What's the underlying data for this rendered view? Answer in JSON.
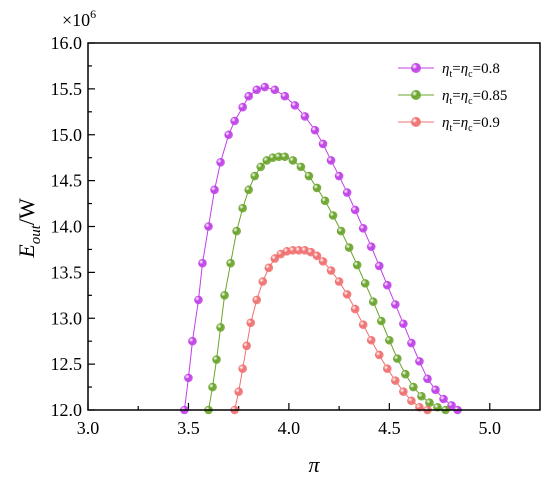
{
  "chart_data": {
    "type": "line",
    "title": "",
    "xlabel": "π",
    "ylabel": {
      "base": "E",
      "sub": "out",
      "suffix": "/W"
    },
    "y_multiplier": {
      "base": "×10",
      "exp": "6"
    },
    "xlim": [
      3.0,
      5.25
    ],
    "ylim": [
      12.0,
      16.0
    ],
    "xticks": [
      "3.0",
      "3.5",
      "4.0",
      "4.5",
      "5.0"
    ],
    "yticks": [
      "12.0",
      "12.5",
      "13.0",
      "13.5",
      "14.0",
      "14.5",
      "15.0",
      "15.5",
      "16.0"
    ],
    "legend_position": "top-right",
    "series": [
      {
        "name": "η_t=η_c=0.8",
        "label": {
          "eta": "η",
          "sub1": "t",
          "eq1": "=",
          "sub2": "c",
          "eq2": "=0.8"
        },
        "color": "#c040e8",
        "peak_x": 3.88,
        "peak_y": 15.52,
        "x": [
          3.48,
          3.5,
          3.52,
          3.55,
          3.57,
          3.6,
          3.63,
          3.66,
          3.7,
          3.73,
          3.77,
          3.8,
          3.84,
          3.88,
          3.93,
          3.98,
          4.03,
          4.08,
          4.13,
          4.17,
          4.21,
          4.25,
          4.29,
          4.33,
          4.37,
          4.41,
          4.45,
          4.49,
          4.53,
          4.57,
          4.61,
          4.65,
          4.69,
          4.73,
          4.77,
          4.81,
          4.84
        ],
        "y": [
          12.0,
          12.35,
          12.75,
          13.2,
          13.6,
          14.0,
          14.4,
          14.7,
          15.0,
          15.15,
          15.3,
          15.42,
          15.49,
          15.52,
          15.49,
          15.42,
          15.32,
          15.2,
          15.05,
          14.9,
          14.72,
          14.55,
          14.37,
          14.18,
          13.98,
          13.78,
          13.57,
          13.36,
          13.15,
          12.94,
          12.73,
          12.53,
          12.34,
          12.22,
          12.12,
          12.05,
          12.0
        ]
      },
      {
        "name": "η_t=η_c=0.85",
        "label": {
          "eta": "η",
          "sub1": "t",
          "eq1": "=",
          "sub2": "c",
          "eq2": "=0.85"
        },
        "color": "#6aa42c",
        "peak_x": 3.98,
        "peak_y": 14.76,
        "x": [
          3.6,
          3.62,
          3.64,
          3.66,
          3.68,
          3.71,
          3.74,
          3.77,
          3.8,
          3.83,
          3.86,
          3.89,
          3.92,
          3.95,
          3.98,
          4.02,
          4.06,
          4.1,
          4.14,
          4.18,
          4.22,
          4.26,
          4.3,
          4.34,
          4.38,
          4.42,
          4.46,
          4.5,
          4.54,
          4.58,
          4.62,
          4.66,
          4.7,
          4.74,
          4.78
        ],
        "y": [
          12.0,
          12.25,
          12.55,
          12.9,
          13.25,
          13.6,
          13.95,
          14.2,
          14.4,
          14.55,
          14.65,
          14.72,
          14.75,
          14.76,
          14.76,
          14.72,
          14.65,
          14.55,
          14.42,
          14.28,
          14.12,
          13.95,
          13.77,
          13.58,
          13.38,
          13.18,
          12.97,
          12.76,
          12.56,
          12.39,
          12.25,
          12.15,
          12.08,
          12.03,
          12.0
        ]
      },
      {
        "name": "η_t=η_c=0.9",
        "label": {
          "eta": "η",
          "sub1": "t",
          "eq1": "=",
          "sub2": "c",
          "eq2": "=0.9"
        },
        "color": "#f07070",
        "peak_x": 4.08,
        "peak_y": 13.74,
        "x": [
          3.73,
          3.75,
          3.77,
          3.79,
          3.81,
          3.84,
          3.87,
          3.9,
          3.93,
          3.96,
          3.99,
          4.02,
          4.05,
          4.08,
          4.11,
          4.14,
          4.17,
          4.21,
          4.25,
          4.29,
          4.33,
          4.37,
          4.41,
          4.45,
          4.49,
          4.53,
          4.57,
          4.61,
          4.65,
          4.69
        ],
        "y": [
          12.0,
          12.2,
          12.45,
          12.7,
          12.95,
          13.2,
          13.4,
          13.55,
          13.65,
          13.7,
          13.73,
          13.74,
          13.74,
          13.74,
          13.72,
          13.68,
          13.62,
          13.52,
          13.4,
          13.26,
          13.1,
          12.93,
          12.76,
          12.6,
          12.45,
          12.32,
          12.2,
          12.1,
          12.03,
          12.0
        ]
      }
    ]
  }
}
